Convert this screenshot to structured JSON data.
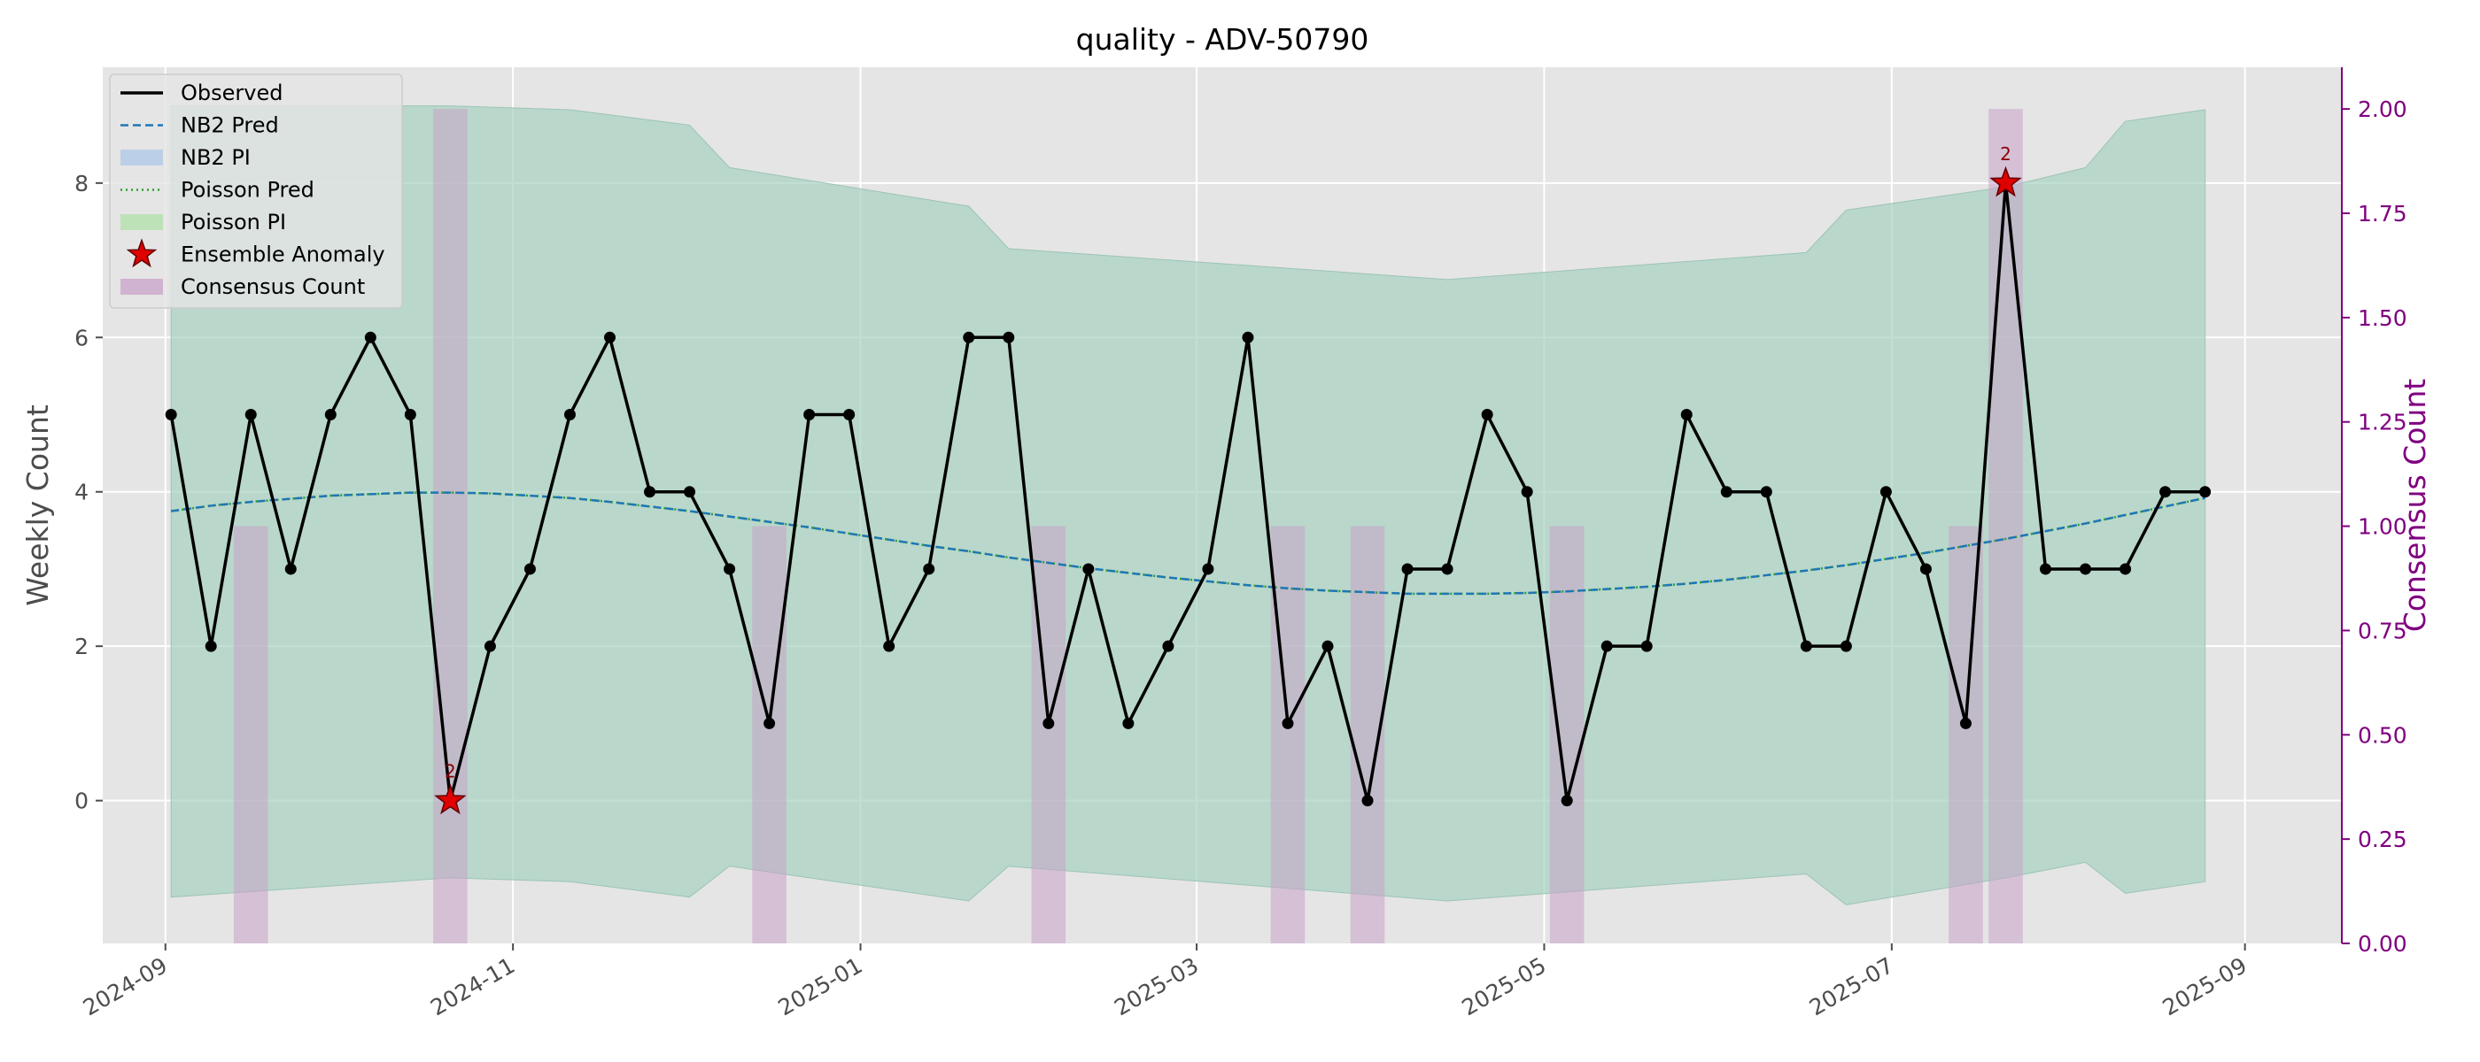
{
  "chart_data": {
    "type": "line",
    "title": "quality - ADV-50790",
    "xlabel": "",
    "ylabel": "Weekly Count",
    "y2label": "Consensus Count",
    "ylim": [
      -1.85,
      9.5
    ],
    "y2lim": [
      0.0,
      2.1
    ],
    "y_ticks": [
      0,
      2,
      4,
      6,
      8
    ],
    "y2_ticks": [
      "0.00",
      "0.25",
      "0.50",
      "0.75",
      "1.00",
      "1.25",
      "1.50",
      "1.75",
      "2.00"
    ],
    "x_range": [
      "2024-08-21",
      "2025-09-18"
    ],
    "x_ticks": [
      "2024-09-01",
      "2024-11-01",
      "2025-01-01",
      "2025-03-01",
      "2025-05-01",
      "2025-07-01",
      "2025-09-01"
    ],
    "x_tick_labels": [
      "2024-09",
      "2024-11",
      "2025-01",
      "2025-03",
      "2025-05",
      "2025-07",
      "2025-09"
    ],
    "grid": true,
    "legend_position": "top-left",
    "legend": [
      "Observed",
      "NB2 Pred",
      "NB2 PI",
      "Poisson Pred",
      "Poisson PI",
      "Ensemble Anomaly",
      "Consensus Count"
    ],
    "colors": {
      "background": "#e5e5e5",
      "grid": "#ffffff",
      "observed": "#000000",
      "nb2_pred": "#1f77b4",
      "nb2_pi": "#aec7e8",
      "poisson_pred": "#2ca02c",
      "poisson_pi": "#98df8a",
      "band_blend": "#b7cdc7",
      "anomaly": "#e00000",
      "consensus": "#c8a2c8",
      "right_axis": "#800080",
      "annotation": "#8b0000"
    },
    "x": [
      "2024-09-02",
      "2024-09-09",
      "2024-09-16",
      "2024-09-23",
      "2024-09-30",
      "2024-10-07",
      "2024-10-14",
      "2024-10-21",
      "2024-10-28",
      "2024-11-04",
      "2024-11-11",
      "2024-11-18",
      "2024-11-25",
      "2024-12-02",
      "2024-12-09",
      "2024-12-16",
      "2024-12-23",
      "2024-12-30",
      "2025-01-06",
      "2025-01-13",
      "2025-01-20",
      "2025-01-27",
      "2025-02-03",
      "2025-02-10",
      "2025-02-17",
      "2025-02-24",
      "2025-03-03",
      "2025-03-10",
      "2025-03-17",
      "2025-03-24",
      "2025-03-31",
      "2025-04-07",
      "2025-04-14",
      "2025-04-21",
      "2025-04-28",
      "2025-05-05",
      "2025-05-12",
      "2025-05-19",
      "2025-05-26",
      "2025-06-02",
      "2025-06-09",
      "2025-06-16",
      "2025-06-23",
      "2025-06-30",
      "2025-07-07",
      "2025-07-14",
      "2025-07-21",
      "2025-07-28",
      "2025-08-04",
      "2025-08-11",
      "2025-08-18",
      "2025-08-25"
    ],
    "series": [
      {
        "name": "Observed",
        "values": [
          5,
          2,
          5,
          3,
          5,
          6,
          5,
          0,
          2,
          3,
          5,
          6,
          4,
          4,
          3,
          1,
          5,
          5,
          2,
          3,
          6,
          6,
          1,
          3,
          1,
          2,
          3,
          6,
          1,
          2,
          0,
          3,
          3,
          5,
          4,
          0,
          2,
          2,
          5,
          4,
          4,
          2,
          2,
          4,
          3,
          1,
          8,
          3,
          3,
          3,
          4,
          4
        ]
      },
      {
        "name": "NB2 Pred",
        "values": [
          3.75,
          3.82,
          3.87,
          3.91,
          3.95,
          3.97,
          3.99,
          3.99,
          3.98,
          3.95,
          3.92,
          3.87,
          3.81,
          3.75,
          3.68,
          3.61,
          3.54,
          3.46,
          3.38,
          3.3,
          3.23,
          3.15,
          3.08,
          3.01,
          2.95,
          2.89,
          2.84,
          2.79,
          2.75,
          2.72,
          2.7,
          2.68,
          2.68,
          2.68,
          2.69,
          2.71,
          2.74,
          2.77,
          2.81,
          2.86,
          2.92,
          2.98,
          3.05,
          3.13,
          3.21,
          3.3,
          3.39,
          3.49,
          3.59,
          3.7,
          3.81,
          3.92
        ]
      },
      {
        "name": "Poisson Pred",
        "values": [
          3.75,
          3.82,
          3.87,
          3.91,
          3.95,
          3.97,
          3.99,
          3.99,
          3.98,
          3.95,
          3.92,
          3.87,
          3.81,
          3.75,
          3.68,
          3.61,
          3.54,
          3.46,
          3.38,
          3.3,
          3.23,
          3.15,
          3.08,
          3.01,
          2.95,
          2.89,
          2.84,
          2.79,
          2.75,
          2.72,
          2.7,
          2.68,
          2.68,
          2.68,
          2.69,
          2.71,
          2.74,
          2.77,
          2.81,
          2.86,
          2.92,
          2.98,
          3.05,
          3.13,
          3.21,
          3.3,
          3.39,
          3.49,
          3.59,
          3.7,
          3.81,
          3.92
        ]
      }
    ],
    "pi_band": {
      "x": [
        "2024-09-02",
        "2024-10-21",
        "2024-11-11",
        "2024-12-02",
        "2024-12-09",
        "2025-01-20",
        "2025-01-27",
        "2025-04-14",
        "2025-06-16",
        "2025-06-23",
        "2025-07-21",
        "2025-08-04",
        "2025-08-11",
        "2025-08-25"
      ],
      "upper": [
        9.0,
        9.0,
        8.95,
        8.75,
        8.2,
        7.7,
        7.15,
        6.75,
        7.1,
        7.65,
        7.95,
        8.2,
        8.8,
        8.95
      ],
      "lower": [
        -1.25,
        -1.0,
        -1.05,
        -1.25,
        -0.85,
        -1.3,
        -0.85,
        -1.3,
        -0.95,
        -1.35,
        -1.0,
        -0.8,
        -1.2,
        -1.05
      ]
    },
    "anomalies": [
      {
        "x": "2024-10-21",
        "y": 0,
        "label": "2"
      },
      {
        "x": "2025-07-21",
        "y": 8,
        "label": "2"
      }
    ],
    "consensus_bars": [
      {
        "x": "2024-09-16",
        "value": 1
      },
      {
        "x": "2024-10-21",
        "value": 2
      },
      {
        "x": "2024-12-16",
        "value": 1
      },
      {
        "x": "2025-02-03",
        "value": 1
      },
      {
        "x": "2025-03-17",
        "value": 1
      },
      {
        "x": "2025-03-31",
        "value": 1
      },
      {
        "x": "2025-05-05",
        "value": 1
      },
      {
        "x": "2025-07-14",
        "value": 1
      },
      {
        "x": "2025-07-21",
        "value": 2
      }
    ]
  }
}
